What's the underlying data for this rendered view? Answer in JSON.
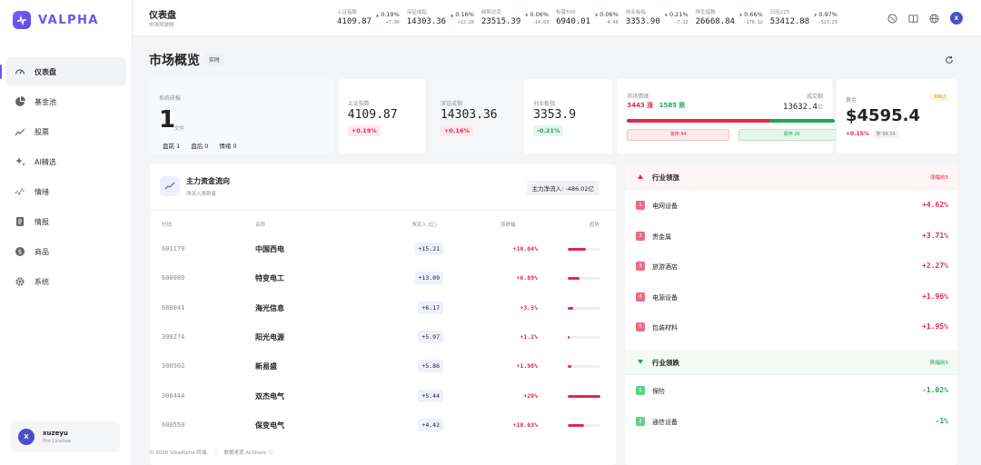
{
  "brand": {
    "name": "VALPHA"
  },
  "sidebar": {
    "items": [
      {
        "label": "仪表盘"
      },
      {
        "label": "基金池"
      },
      {
        "label": "股票"
      },
      {
        "label": "AI精选"
      },
      {
        "label": "情绪"
      },
      {
        "label": "情报"
      },
      {
        "label": "商品"
      },
      {
        "label": "系统"
      }
    ],
    "user": {
      "initial": "X",
      "name": "xuzeyu",
      "plan": "Pro License"
    }
  },
  "header": {
    "title": "仪表盘",
    "subtitle": "市场驾驶舱",
    "tickers": [
      {
        "name": "上证指数",
        "value": "4109.87",
        "pct": "0.19%",
        "chg": "+7.96",
        "dir": "up"
      },
      {
        "name": "深证成指",
        "value": "14303.36",
        "pct": "0.16%",
        "chg": "+22.28",
        "dir": "up"
      },
      {
        "name": "纳斯达克",
        "value": "23515.39",
        "pct": "0.06%",
        "chg": "-14.63",
        "dir": "down"
      },
      {
        "name": "标普500",
        "value": "6940.01",
        "pct": "0.06%",
        "chg": "-4.46",
        "dir": "down"
      },
      {
        "name": "创业板指",
        "value": "3353.90",
        "pct": "0.21%",
        "chg": "-7.12",
        "dir": "down"
      },
      {
        "name": "恒生指数",
        "value": "26668.84",
        "pct": "0.66%",
        "chg": "-176.12",
        "dir": "down"
      },
      {
        "name": "日经225",
        "value": "53412.88",
        "pct": "0.97%",
        "chg": "-523.29",
        "dir": "down"
      }
    ],
    "avatar_initial": "X"
  },
  "overview": {
    "title": "市场概览",
    "badge": "实时",
    "system": {
      "label": "系统研报",
      "count": "1",
      "unit": "文件",
      "tags": [
        "盘前 1",
        "盘后 0",
        "情绪 0"
      ]
    },
    "indices": [
      {
        "name": "上证指数",
        "value": "4109.87",
        "pct": "+0.19%",
        "dir": "up"
      },
      {
        "name": "深证成指",
        "value": "14303.36",
        "pct": "+0.16%",
        "dir": "up"
      },
      {
        "name": "创业板指",
        "value": "3353.9",
        "pct": "-0.21%",
        "dir": "down"
      }
    ],
    "sentiment": {
      "label": "市场情绪",
      "up_count": "3443 涨",
      "down_count": "1585 跌",
      "volume_label": "成交额",
      "volume": "13632.4",
      "volume_unit": "亿",
      "limit_up": "涨停 44",
      "limit_down": "跌停 26",
      "up_ratio": 0.685
    },
    "gold": {
      "label": "黄金",
      "code": "XAU",
      "value": "$4595.4",
      "pct": "+0.15%",
      "prev": "昨 99.34"
    }
  },
  "flow": {
    "title": "主力资金流向",
    "subtitle": "净流入排跑者",
    "net_label": "主力净流入: -486.02亿",
    "columns": [
      "代码",
      "名称",
      "净流入 (亿)",
      "涨跌幅",
      "趋势"
    ],
    "rows": [
      {
        "code": "601179",
        "name": "中国西电",
        "net": "+15.21",
        "pct": "+10.04%",
        "trend": 0.55
      },
      {
        "code": "600089",
        "name": "特变电工",
        "net": "+13.09",
        "pct": "+6.89%",
        "trend": 0.35
      },
      {
        "code": "688041",
        "name": "海光信息",
        "net": "+6.17",
        "pct": "+3.5%",
        "trend": 0.18
      },
      {
        "code": "300274",
        "name": "阳光电源",
        "net": "+5.97",
        "pct": "+1.2%",
        "trend": 0.06
      },
      {
        "code": "300502",
        "name": "新易盛",
        "net": "+5.86",
        "pct": "+1.98%",
        "trend": 0.1
      },
      {
        "code": "300444",
        "name": "双杰电气",
        "net": "+5.44",
        "pct": "+20%",
        "trend": 1.0
      },
      {
        "code": "600550",
        "name": "保变电气",
        "net": "+4.42",
        "pct": "+10.03%",
        "trend": 0.5
      }
    ]
  },
  "industry": {
    "up_title": "行业领涨",
    "up_right": "涨幅前5",
    "up": [
      {
        "rank": "1",
        "name": "电网设备",
        "pct": "+4.62%"
      },
      {
        "rank": "2",
        "name": "贵金属",
        "pct": "+3.71%"
      },
      {
        "rank": "3",
        "name": "旅游酒店",
        "pct": "+2.27%"
      },
      {
        "rank": "4",
        "name": "电源设备",
        "pct": "+1.96%"
      },
      {
        "rank": "5",
        "name": "包装材料",
        "pct": "+1.95%"
      }
    ],
    "down_title": "行业领跌",
    "down_right": "跌幅前5",
    "down": [
      {
        "rank": "1",
        "name": "保险",
        "pct": "-1.02%"
      },
      {
        "rank": "2",
        "name": "通信设备",
        "pct": "-1%"
      }
    ]
  },
  "footer": {
    "copyright": "© 2026 VibeAlpha 终端.",
    "source": "数据来源 AkShare ⓘ"
  },
  "colors": {
    "accent": "#6a55ee",
    "up": "#e0294a",
    "down": "#22a55b"
  }
}
